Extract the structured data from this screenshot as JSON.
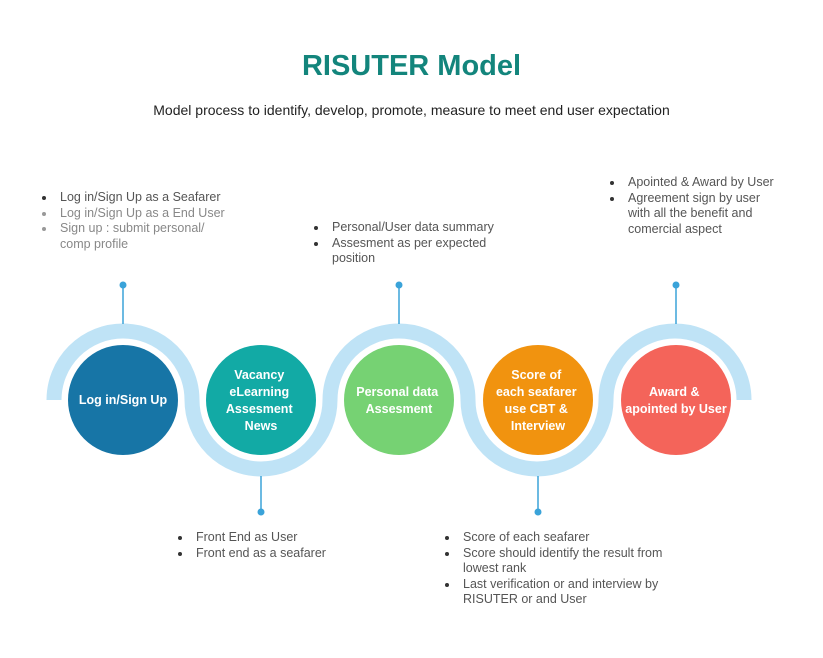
{
  "header": {
    "title": "RISUTER Model",
    "subtitle": "Model process to identify, develop, promote, measure to meet end user expectation"
  },
  "colors": {
    "title": "#13857c",
    "track": "#bfe3f6",
    "connector": "#3aa3d9",
    "stage1": "#1775a6",
    "stage2": "#12aaa5",
    "stage3": "#76d273",
    "stage4": "#f1930f",
    "stage5": "#f4645a"
  },
  "stages": [
    {
      "lines": [
        "Log in/Sign Up"
      ]
    },
    {
      "lines": [
        "Vacancy",
        "eLearning",
        "Assesment",
        "News"
      ]
    },
    {
      "lines": [
        "Personal data",
        "Assesment"
      ]
    },
    {
      "lines": [
        "Score of",
        "each seafarer",
        "use CBT &",
        "Interview"
      ]
    },
    {
      "lines": [
        "Award &",
        "apointed by User"
      ]
    }
  ],
  "notes": {
    "stage1": [
      "Log in/Sign Up as a Seafarer",
      "Log in/Sign Up as a End User",
      "Sign up : submit personal/ comp profile"
    ],
    "stage2": [
      "Front End as User",
      "Front end as a seafarer"
    ],
    "stage3": [
      "Personal/User data summary",
      "Assesment as per expected position"
    ],
    "stage4": [
      "Score of each seafarer",
      "Score should identify the result from lowest rank",
      "Last verification or and interview by RISUTER or and User"
    ],
    "stage5": [
      "Apointed & Award by User",
      "Agreement sign by user with all the benefit and comercial aspect"
    ]
  }
}
